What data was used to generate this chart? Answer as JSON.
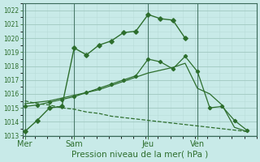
{
  "background_color": "#c8eae8",
  "grid_color_major": "#a0c8c0",
  "grid_color_minor": "#b8dcd8",
  "line_color": "#2d6e2d",
  "title": "Pression niveau de la mer( hPa )",
  "ylim": [
    1013,
    1022.5
  ],
  "yticks": [
    1013,
    1014,
    1015,
    1016,
    1017,
    1018,
    1019,
    1020,
    1021,
    1022
  ],
  "xtick_labels": [
    "Mer",
    "Sam",
    "Jeu",
    "Ven"
  ],
  "xtick_positions": [
    0,
    4,
    10,
    14
  ],
  "xlim": [
    -0.2,
    18.2
  ],
  "series1_x": [
    0,
    1,
    2,
    3,
    4,
    5,
    6,
    7,
    8,
    9,
    10,
    11,
    12,
    13
  ],
  "series1_y": [
    1013.3,
    1014.1,
    1015.0,
    1015.1,
    1019.3,
    1018.8,
    1019.5,
    1019.8,
    1020.4,
    1020.5,
    1021.7,
    1021.4,
    1021.3,
    1020.0
  ],
  "series2_x": [
    0,
    1,
    2,
    3,
    4,
    5,
    6,
    7,
    8,
    9,
    10,
    11,
    12,
    13,
    14,
    15,
    16,
    17,
    18
  ],
  "series2_y": [
    1015.1,
    1015.2,
    1015.4,
    1015.6,
    1015.8,
    1016.1,
    1016.4,
    1016.7,
    1017.0,
    1017.3,
    1018.5,
    1018.3,
    1017.8,
    1018.7,
    1017.6,
    1015.0,
    1015.1,
    1014.1,
    1013.4
  ],
  "series3_x": [
    0,
    1,
    2,
    3,
    4,
    5,
    6,
    7,
    8,
    9,
    10,
    11,
    12,
    13,
    14,
    15,
    16,
    17,
    18
  ],
  "series3_y": [
    1015.3,
    1015.4,
    1015.5,
    1015.7,
    1015.9,
    1016.1,
    1016.3,
    1016.6,
    1016.9,
    1017.2,
    1017.5,
    1017.7,
    1017.9,
    1018.2,
    1016.4,
    1016.0,
    1015.2,
    1013.6,
    1013.3
  ],
  "series4_x": [
    0,
    1,
    2,
    3,
    4,
    5,
    6,
    7,
    8,
    9,
    10,
    11,
    12,
    13,
    14,
    15,
    16,
    17,
    18
  ],
  "series4_y": [
    1015.5,
    1015.3,
    1015.2,
    1015.0,
    1014.9,
    1014.7,
    1014.6,
    1014.4,
    1014.3,
    1014.2,
    1014.1,
    1014.0,
    1013.9,
    1013.8,
    1013.7,
    1013.6,
    1013.5,
    1013.4,
    1013.3
  ]
}
